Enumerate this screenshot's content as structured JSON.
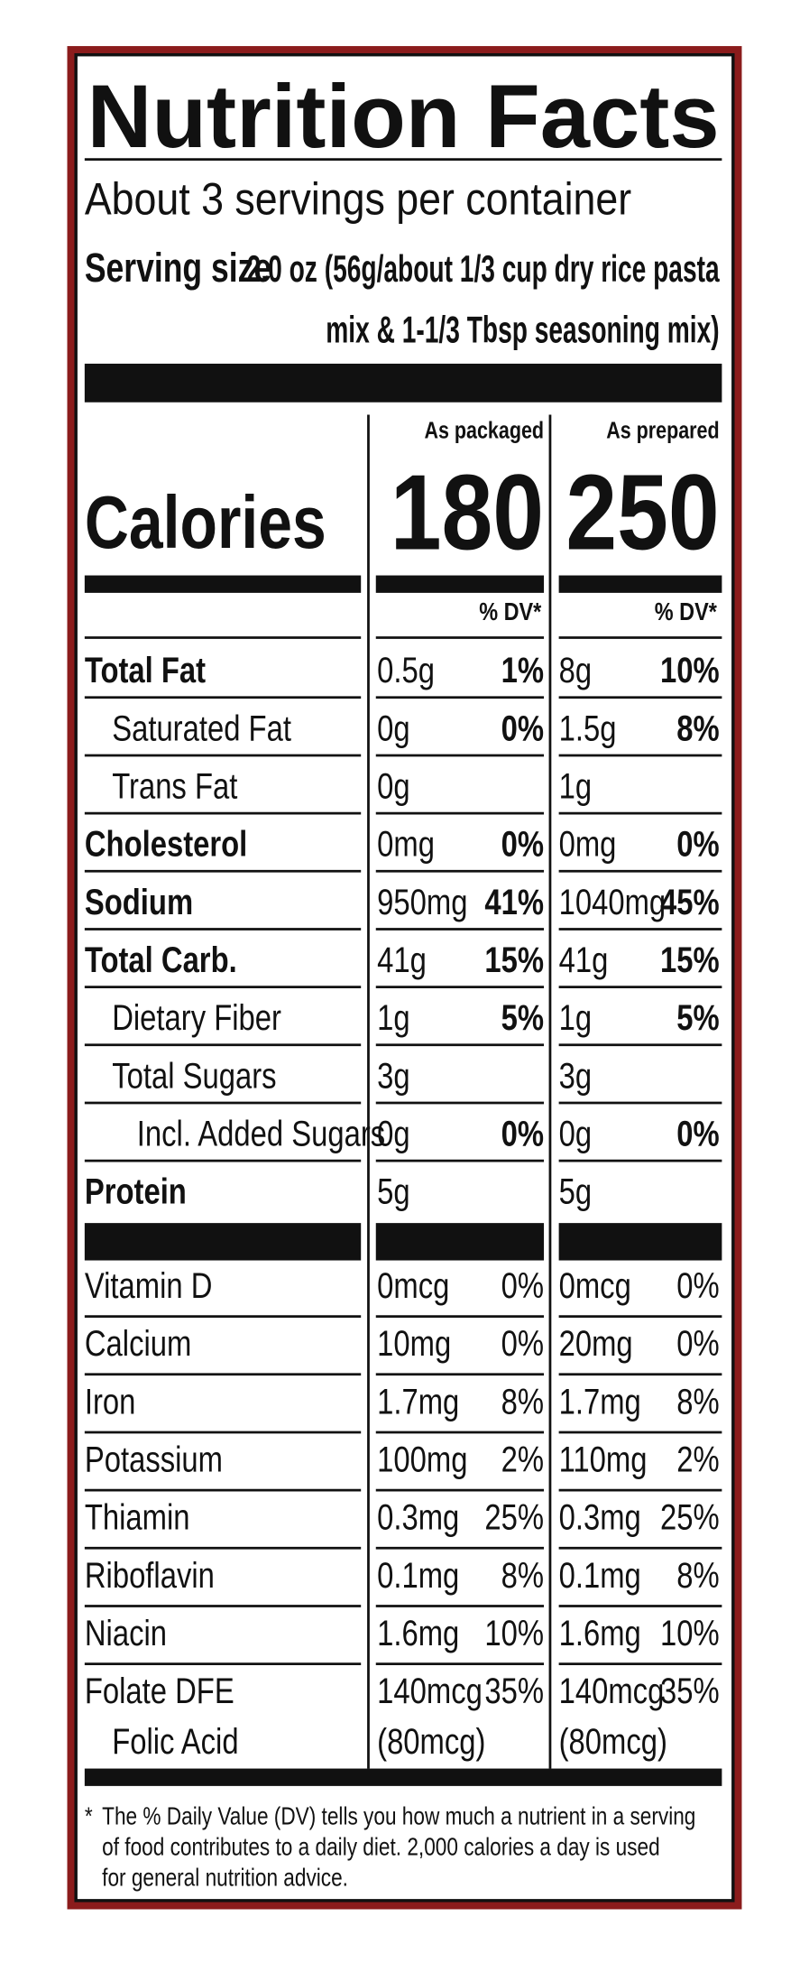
{
  "title": "Nutrition Facts",
  "servings_per_container": "About 3 servings per container",
  "serving_size_label": "Serving size",
  "serving_size_lines": [
    "2.0 oz (56g/about 1/3 cup dry rice pasta",
    "mix & 1-1/3 Tbsp seasoning mix)"
  ],
  "columns": [
    "As packaged",
    "As prepared"
  ],
  "calories_label": "Calories",
  "calories": [
    180,
    250
  ],
  "dv_header": [
    "% DV*",
    "% DV*"
  ],
  "nutrients": [
    {
      "name": "Total Fat",
      "packaged": [
        "0.5g",
        "1%"
      ],
      "prepared": [
        "8g",
        "10%"
      ]
    },
    {
      "name": "Saturated Fat",
      "packaged": [
        "0g",
        "0%"
      ],
      "prepared": [
        "1.5g",
        "8%"
      ]
    },
    {
      "name": "Trans Fat",
      "packaged": [
        "0g",
        null
      ],
      "prepared": [
        "1g",
        null
      ]
    },
    {
      "name": "Cholesterol",
      "packaged": [
        "0mg",
        "0%"
      ],
      "prepared": [
        "0mg",
        "0%"
      ]
    },
    {
      "name": "Sodium",
      "packaged": [
        "950mg",
        "41%"
      ],
      "prepared": [
        "1040mg",
        "45%"
      ]
    },
    {
      "name": "Total Carb.",
      "packaged": [
        "41g",
        "15%"
      ],
      "prepared": [
        "41g",
        "15%"
      ]
    },
    {
      "name": "Dietary Fiber",
      "packaged": [
        "1g",
        "5%"
      ],
      "prepared": [
        "1g",
        "5%"
      ]
    },
    {
      "name": "Total Sugars",
      "packaged": [
        "3g",
        null
      ],
      "prepared": [
        "3g",
        null
      ]
    },
    {
      "name": "Incl. Added Sugars",
      "packaged": [
        "0g",
        "0%"
      ],
      "prepared": [
        "0g",
        "0%"
      ]
    },
    {
      "name": "Protein",
      "packaged": [
        "5g",
        null
      ],
      "prepared": [
        "5g",
        null
      ]
    }
  ],
  "vitamins": [
    {
      "name": "Vitamin D",
      "packaged": [
        "0mcg",
        "0%"
      ],
      "prepared": [
        "0mcg",
        "0%"
      ]
    },
    {
      "name": "Calcium",
      "packaged": [
        "10mg",
        "0%"
      ],
      "prepared": [
        "20mg",
        "0%"
      ]
    },
    {
      "name": "Iron",
      "packaged": [
        "1.7mg",
        "8%"
      ],
      "prepared": [
        "1.7mg",
        "8%"
      ]
    },
    {
      "name": "Potassium",
      "packaged": [
        "100mg",
        "2%"
      ],
      "prepared": [
        "110mg",
        "2%"
      ]
    },
    {
      "name": "Thiamin",
      "packaged": [
        "0.3mg",
        "25%"
      ],
      "prepared": [
        "0.3mg",
        "25%"
      ]
    },
    {
      "name": "Riboflavin",
      "packaged": [
        "0.1mg",
        "8%"
      ],
      "prepared": [
        "0.1mg",
        "8%"
      ]
    },
    {
      "name": "Niacin",
      "packaged": [
        "1.6mg",
        "10%"
      ],
      "prepared": [
        "1.6mg",
        "10%"
      ]
    },
    {
      "name": "Folate DFE",
      "packaged": [
        "140mcg",
        "35%"
      ],
      "prepared": [
        "140mcg",
        "35%"
      ]
    },
    {
      "name": "Folic Acid",
      "packaged": [
        "(80mcg)",
        null
      ],
      "prepared": [
        "(80mcg)",
        null
      ]
    }
  ],
  "footnote": [
    "*",
    "The % Daily Value (DV) tells you how much a nutrient in a serving",
    "of food contributes to a daily diet. 2,000 calories a day is used",
    "for general nutrition advice."
  ]
}
